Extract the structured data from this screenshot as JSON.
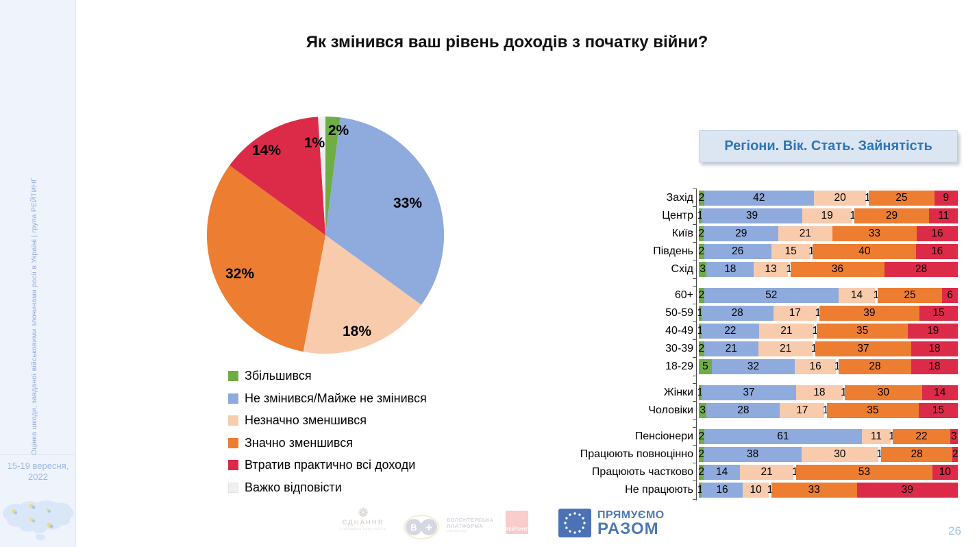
{
  "title": "Як змінився ваш рівень доходів з початку війни?",
  "panel_header": "Регіони. Вік. Стать. Зайнятість",
  "page_number": "26",
  "sidebar": {
    "vertical_text": "Оцінка шкоди, завданої військовими злочинами росії в Україні | група РЕЙТИНГ",
    "date_line1": "15-19 вересня,",
    "date_line2": "2022"
  },
  "footer": {
    "logo1_name": "ЄДНАННЯ",
    "logo1_tagline": "створюємо нову якість",
    "logo2_line1": "ВОЛОНТЕРСЬКА",
    "logo2_line2": "ПЛАТФОРМА",
    "logo2_url": "volonter.org",
    "logo3_name": "РЕЙТИНГ",
    "logo4_line1": "ПРЯМУЄМО",
    "logo4_line2": "РАЗОМ"
  },
  "chart_data": [
    {
      "type": "pie",
      "title": "Як змінився ваш рівень доходів з початку війни?",
      "labels": [
        "Збільшився",
        "Не змінився/Майже не змінився",
        "Незначно зменшився",
        "Значно зменшився",
        "Втратив практично всі доходи",
        "Важко відповісти"
      ],
      "values": [
        2,
        33,
        18,
        32,
        14,
        1
      ],
      "unit": "%",
      "colors": [
        "#6EAE45",
        "#8FAADC",
        "#F8CBAD",
        "#ED7D31",
        "#DB2B49",
        "#EFEFEF"
      ],
      "legend_position": "bottom-left",
      "start_angle_deg": 0,
      "direction": "clockwise"
    },
    {
      "type": "bar",
      "orientation": "horizontal-stacked",
      "title": "Регіони. Вік. Стать. Зайнятість",
      "segment_order": [
        "Збільшився",
        "Не змінився/Майже не змінився",
        "Незначно зменшився",
        "Важко відповісти",
        "Значно зменшився",
        "Втратив практично всі доходи"
      ],
      "segment_colors": [
        "#6EAE45",
        "#8FAADC",
        "#F8CBAD",
        "#F5F5F5",
        "#ED7D31",
        "#DB2B49"
      ],
      "xlim": [
        0,
        100
      ],
      "groups": [
        {
          "name": "regions",
          "rows": [
            {
              "label": "Захід",
              "values": [
                2,
                42,
                20,
                1,
                25,
                9
              ]
            },
            {
              "label": "Центр",
              "values": [
                1,
                39,
                19,
                1,
                29,
                11
              ]
            },
            {
              "label": "Київ",
              "values": [
                2,
                29,
                21,
                0,
                33,
                16
              ]
            },
            {
              "label": "Південь",
              "values": [
                2,
                26,
                15,
                1,
                40,
                16
              ]
            },
            {
              "label": "Схід",
              "values": [
                3,
                18,
                13,
                1,
                36,
                28
              ]
            }
          ]
        },
        {
          "name": "age",
          "rows": [
            {
              "label": "60+",
              "values": [
                2,
                52,
                14,
                1,
                25,
                6
              ]
            },
            {
              "label": "50-59",
              "values": [
                1,
                28,
                17,
                1,
                39,
                15
              ]
            },
            {
              "label": "40-49",
              "values": [
                1,
                22,
                21,
                1,
                35,
                19
              ]
            },
            {
              "label": "30-39",
              "values": [
                2,
                21,
                21,
                1,
                37,
                18
              ]
            },
            {
              "label": "18-29",
              "values": [
                5,
                32,
                16,
                1,
                28,
                18
              ]
            }
          ]
        },
        {
          "name": "gender",
          "rows": [
            {
              "label": "Жінки",
              "values": [
                1,
                37,
                18,
                1,
                30,
                14
              ]
            },
            {
              "label": "Чоловіки",
              "values": [
                3,
                28,
                17,
                1,
                35,
                15
              ]
            }
          ]
        },
        {
          "name": "employment",
          "rows": [
            {
              "label": "Пенсіонери",
              "values": [
                2,
                61,
                11,
                1,
                22,
                3
              ]
            },
            {
              "label": "Працюють повноцінно",
              "values": [
                2,
                38,
                30,
                1,
                28,
                2
              ]
            },
            {
              "label": "Працюють частково",
              "values": [
                2,
                14,
                21,
                1,
                53,
                10
              ]
            },
            {
              "label": "Не працюють",
              "values": [
                1,
                16,
                10,
                1,
                33,
                39
              ]
            }
          ]
        }
      ]
    }
  ]
}
